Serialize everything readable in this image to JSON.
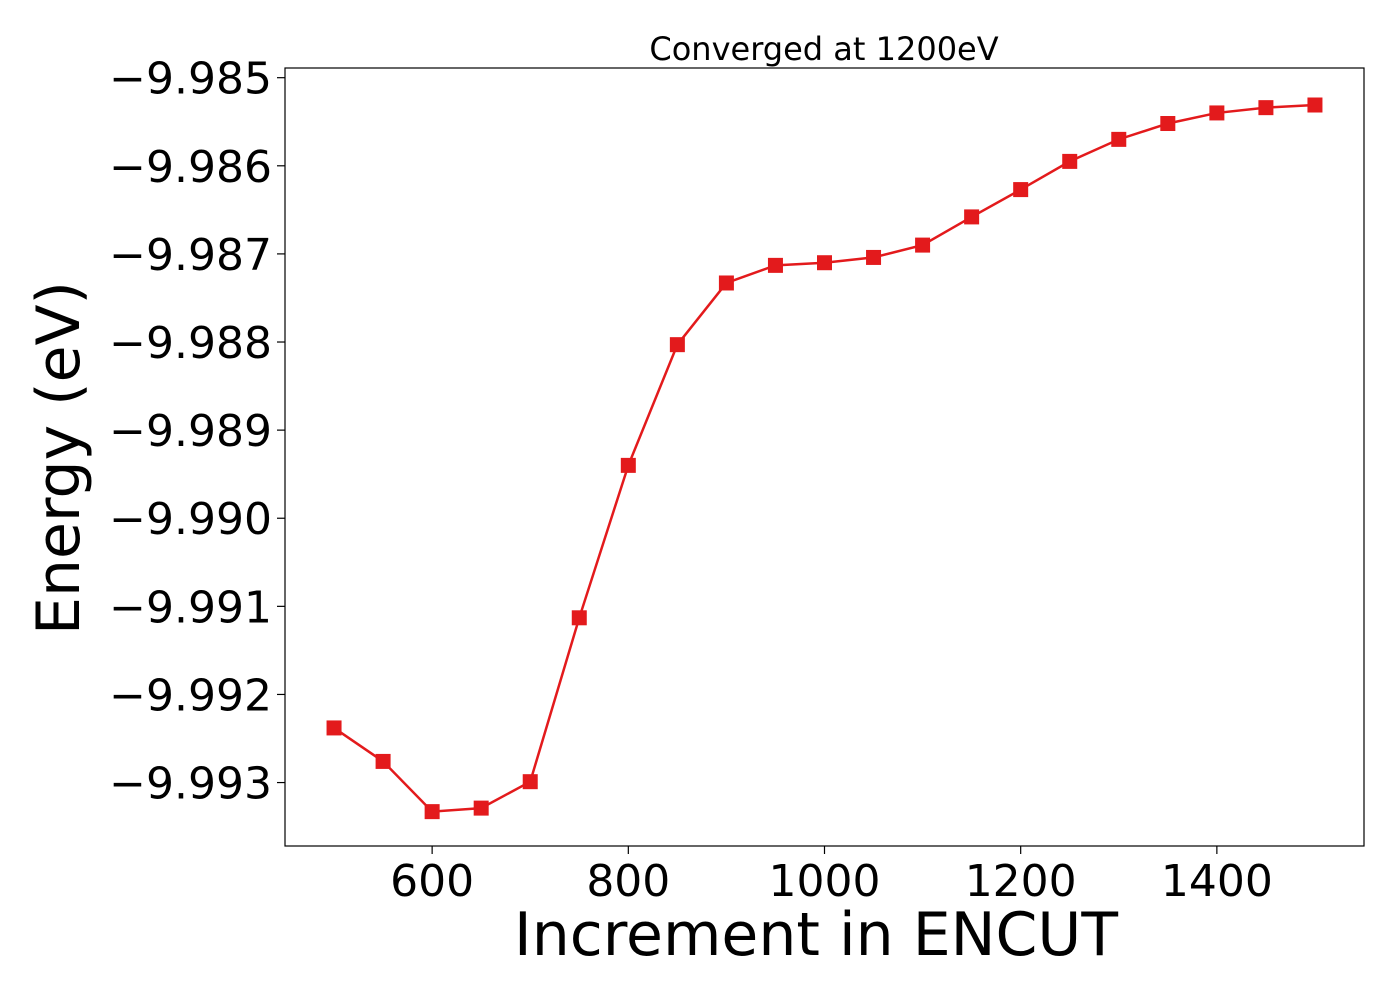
{
  "chart_data": {
    "type": "line",
    "title": "Converged at 1200eV",
    "xlabel": "Increment in ENCUT",
    "ylabel": "Energy (eV)",
    "xlim": [
      450,
      1550
    ],
    "ylim": [
      -9.99372,
      -9.98489
    ],
    "x_ticks": [
      600,
      800,
      1000,
      1200,
      1400
    ],
    "x_tick_labels": [
      "600",
      "800",
      "1000",
      "1200",
      "1400"
    ],
    "y_ticks": [
      -9.985,
      -9.986,
      -9.987,
      -9.988,
      -9.989,
      -9.99,
      -9.991,
      -9.992,
      -9.993
    ],
    "y_tick_labels": [
      "−9.985",
      "−9.986",
      "−9.987",
      "−9.988",
      "−9.989",
      "−9.990",
      "−9.991",
      "−9.992",
      "−9.993"
    ],
    "grid": false,
    "marker": "square",
    "color": "#e31a1c",
    "x": [
      500,
      550,
      600,
      650,
      700,
      750,
      800,
      850,
      900,
      950,
      1000,
      1050,
      1100,
      1150,
      1200,
      1250,
      1300,
      1350,
      1400,
      1450,
      1500
    ],
    "series": [
      {
        "values": [
          -9.99238,
          -9.99276,
          -9.99333,
          -9.99329,
          -9.99299,
          -9.99113,
          -9.9894,
          -9.98803,
          -9.98733,
          -9.98713,
          -9.9871,
          -9.98704,
          -9.9869,
          -9.98658,
          -9.98627,
          -9.98595,
          -9.9857,
          -9.98552,
          -9.9854,
          -9.98534,
          -9.98531
        ]
      }
    ]
  }
}
